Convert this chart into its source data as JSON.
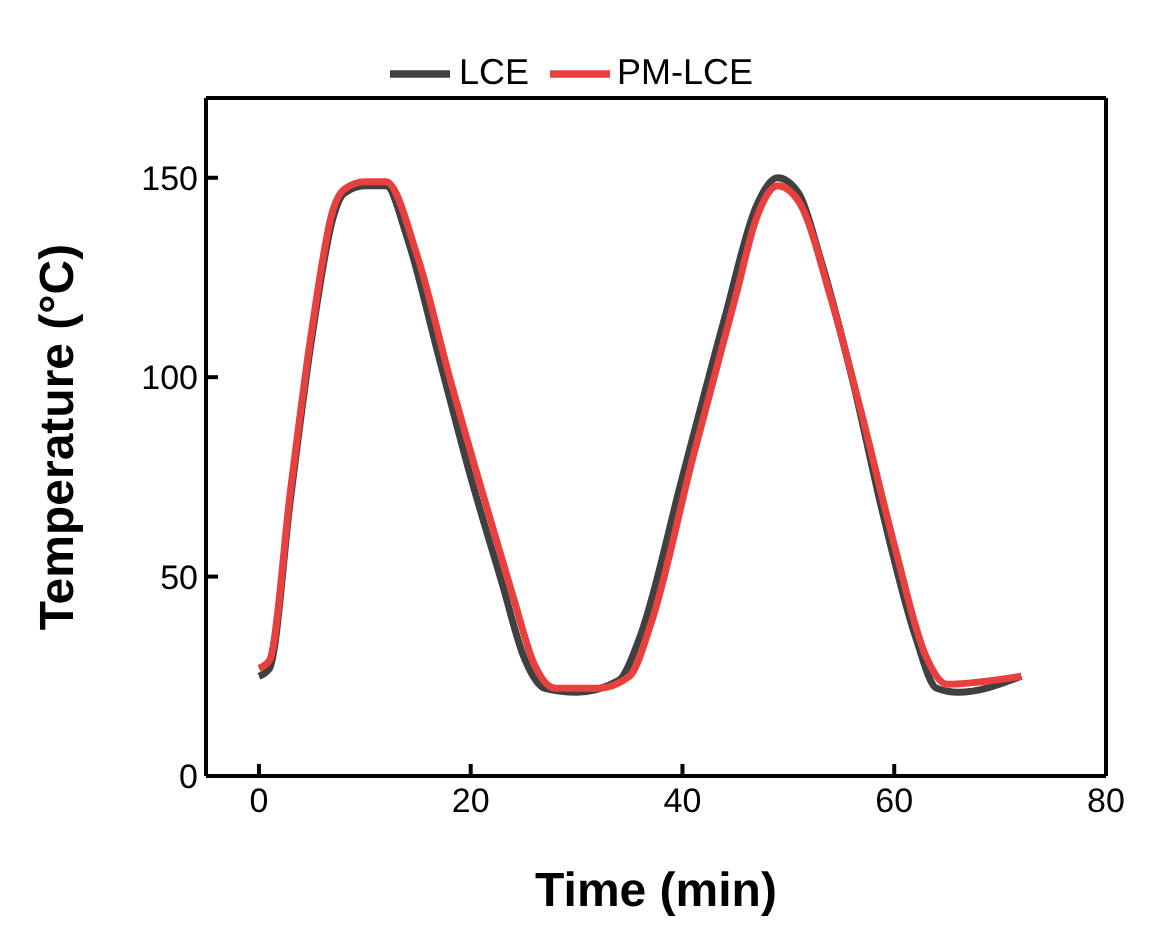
{
  "chart_data": {
    "type": "line",
    "xlabel": "Time (min)",
    "ylabel": "Temperature (°C)",
    "xlim": [
      -5,
      80
    ],
    "xticks": [
      0,
      20,
      40,
      60,
      80
    ],
    "ylim": [
      0,
      170
    ],
    "yticks": [
      0,
      50,
      100,
      150
    ],
    "legend": "top",
    "marker": "none",
    "line_style": "solid",
    "series": [
      {
        "name": "LCE",
        "color": "#404040",
        "x": [
          0,
          1,
          3,
          5,
          7,
          8,
          10,
          12,
          14,
          17,
          20,
          23,
          25,
          27,
          30,
          34,
          36,
          40,
          44,
          47,
          49,
          51,
          53,
          56,
          59,
          62,
          64,
          66,
          72
        ],
        "values": [
          25,
          27,
          70,
          110,
          140,
          146,
          148,
          148,
          135,
          105,
          75,
          48,
          30,
          22,
          21,
          24,
          35,
          75,
          115,
          143,
          150,
          146,
          130,
          100,
          65,
          35,
          22,
          21,
          25
        ]
      },
      {
        "name": "PM-LCE",
        "color": "#e8403f",
        "x": [
          0,
          1,
          3,
          5,
          7,
          8,
          10,
          12,
          15,
          18,
          21,
          24,
          26,
          28,
          32,
          35,
          37,
          41,
          45,
          47,
          49,
          51,
          54,
          57,
          60,
          63,
          65,
          72
        ],
        "values": [
          27,
          29,
          72,
          112,
          142,
          147,
          149,
          149,
          130,
          100,
          72,
          45,
          28,
          22,
          22,
          25,
          38,
          80,
          120,
          140,
          148,
          144,
          120,
          90,
          58,
          30,
          23,
          25
        ]
      }
    ]
  }
}
